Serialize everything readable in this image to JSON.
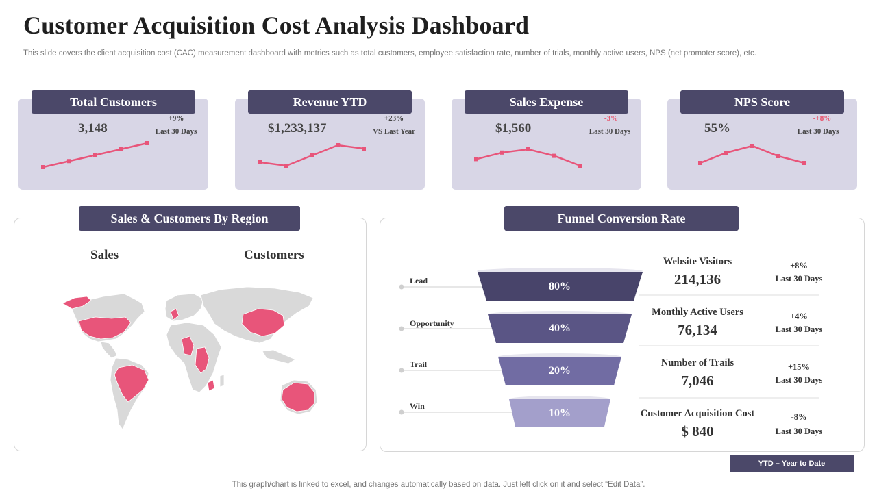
{
  "header": {
    "title": "Customer Acquisition Cost Analysis Dashboard",
    "subtitle": "This slide covers the client acquisition cost (CAC) measurement dashboard with metrics such as total customers, employee satisfaction rate, number of trials, monthly active users, NPS (net promoter score), etc."
  },
  "colors": {
    "accent": "#4b4869",
    "card_bg": "#d8d6e6",
    "highlight": "#e8557a",
    "map_land": "#d9d9d9"
  },
  "kpis": [
    {
      "label": "Total Customers",
      "value": "3,148",
      "delta": "+9%",
      "period": "Last 30 Days",
      "negative": false,
      "trend": [
        1,
        2,
        3,
        4,
        5
      ]
    },
    {
      "label": "Revenue YTD",
      "value": "$1,233,137",
      "delta": "+23%",
      "period": "VS Last Year",
      "negative": false,
      "trend": [
        3,
        2,
        5,
        8,
        7
      ]
    },
    {
      "label": "Sales Expense",
      "value": "$1,560",
      "delta": "-3%",
      "period": "Last 30 Days",
      "negative": true,
      "trend": [
        4,
        6,
        7,
        5,
        2
      ]
    },
    {
      "label": "NPS Score",
      "value": "55%",
      "delta": "-+8%",
      "period": "Last 30 Days",
      "negative": true,
      "trend": [
        2,
        5,
        7,
        4,
        2
      ]
    }
  ],
  "region": {
    "title": "Sales & Customers By Region",
    "sales_label": "Sales",
    "customers_label": "Customers",
    "highlighted_regions": [
      "Greenland",
      "United States",
      "Brazil",
      "Western Europe",
      "Central Africa",
      "East Africa",
      "China",
      "Australia"
    ]
  },
  "funnel": {
    "title": "Funnel Conversion Rate",
    "stages": [
      {
        "label": "Lead",
        "value": "80%"
      },
      {
        "label": "Opportunity",
        "value": "40%"
      },
      {
        "label": "Trail",
        "value": "20%"
      },
      {
        "label": "Win",
        "value": "10%"
      }
    ],
    "metrics": [
      {
        "name": "Website Visitors",
        "value": "214,136",
        "delta": "+8%",
        "period": "Last 30 Days"
      },
      {
        "name": "Monthly Active Users",
        "value": "76,134",
        "delta": "+4%",
        "period": "Last 30 Days"
      },
      {
        "name": "Number of Trails",
        "value": "7,046",
        "delta": "+15%",
        "period": "Last 30 Days"
      },
      {
        "name": "Customer Acquisition Cost",
        "value": "$ 840",
        "delta": "-8%",
        "period": "Last 30 Days"
      }
    ]
  },
  "legend": {
    "ytd": "YTD – Year to Date"
  },
  "footer": {
    "note": "This graph/chart is linked to excel,  and changes automatically based on data. Just left click on it and select “Edit Data”."
  }
}
